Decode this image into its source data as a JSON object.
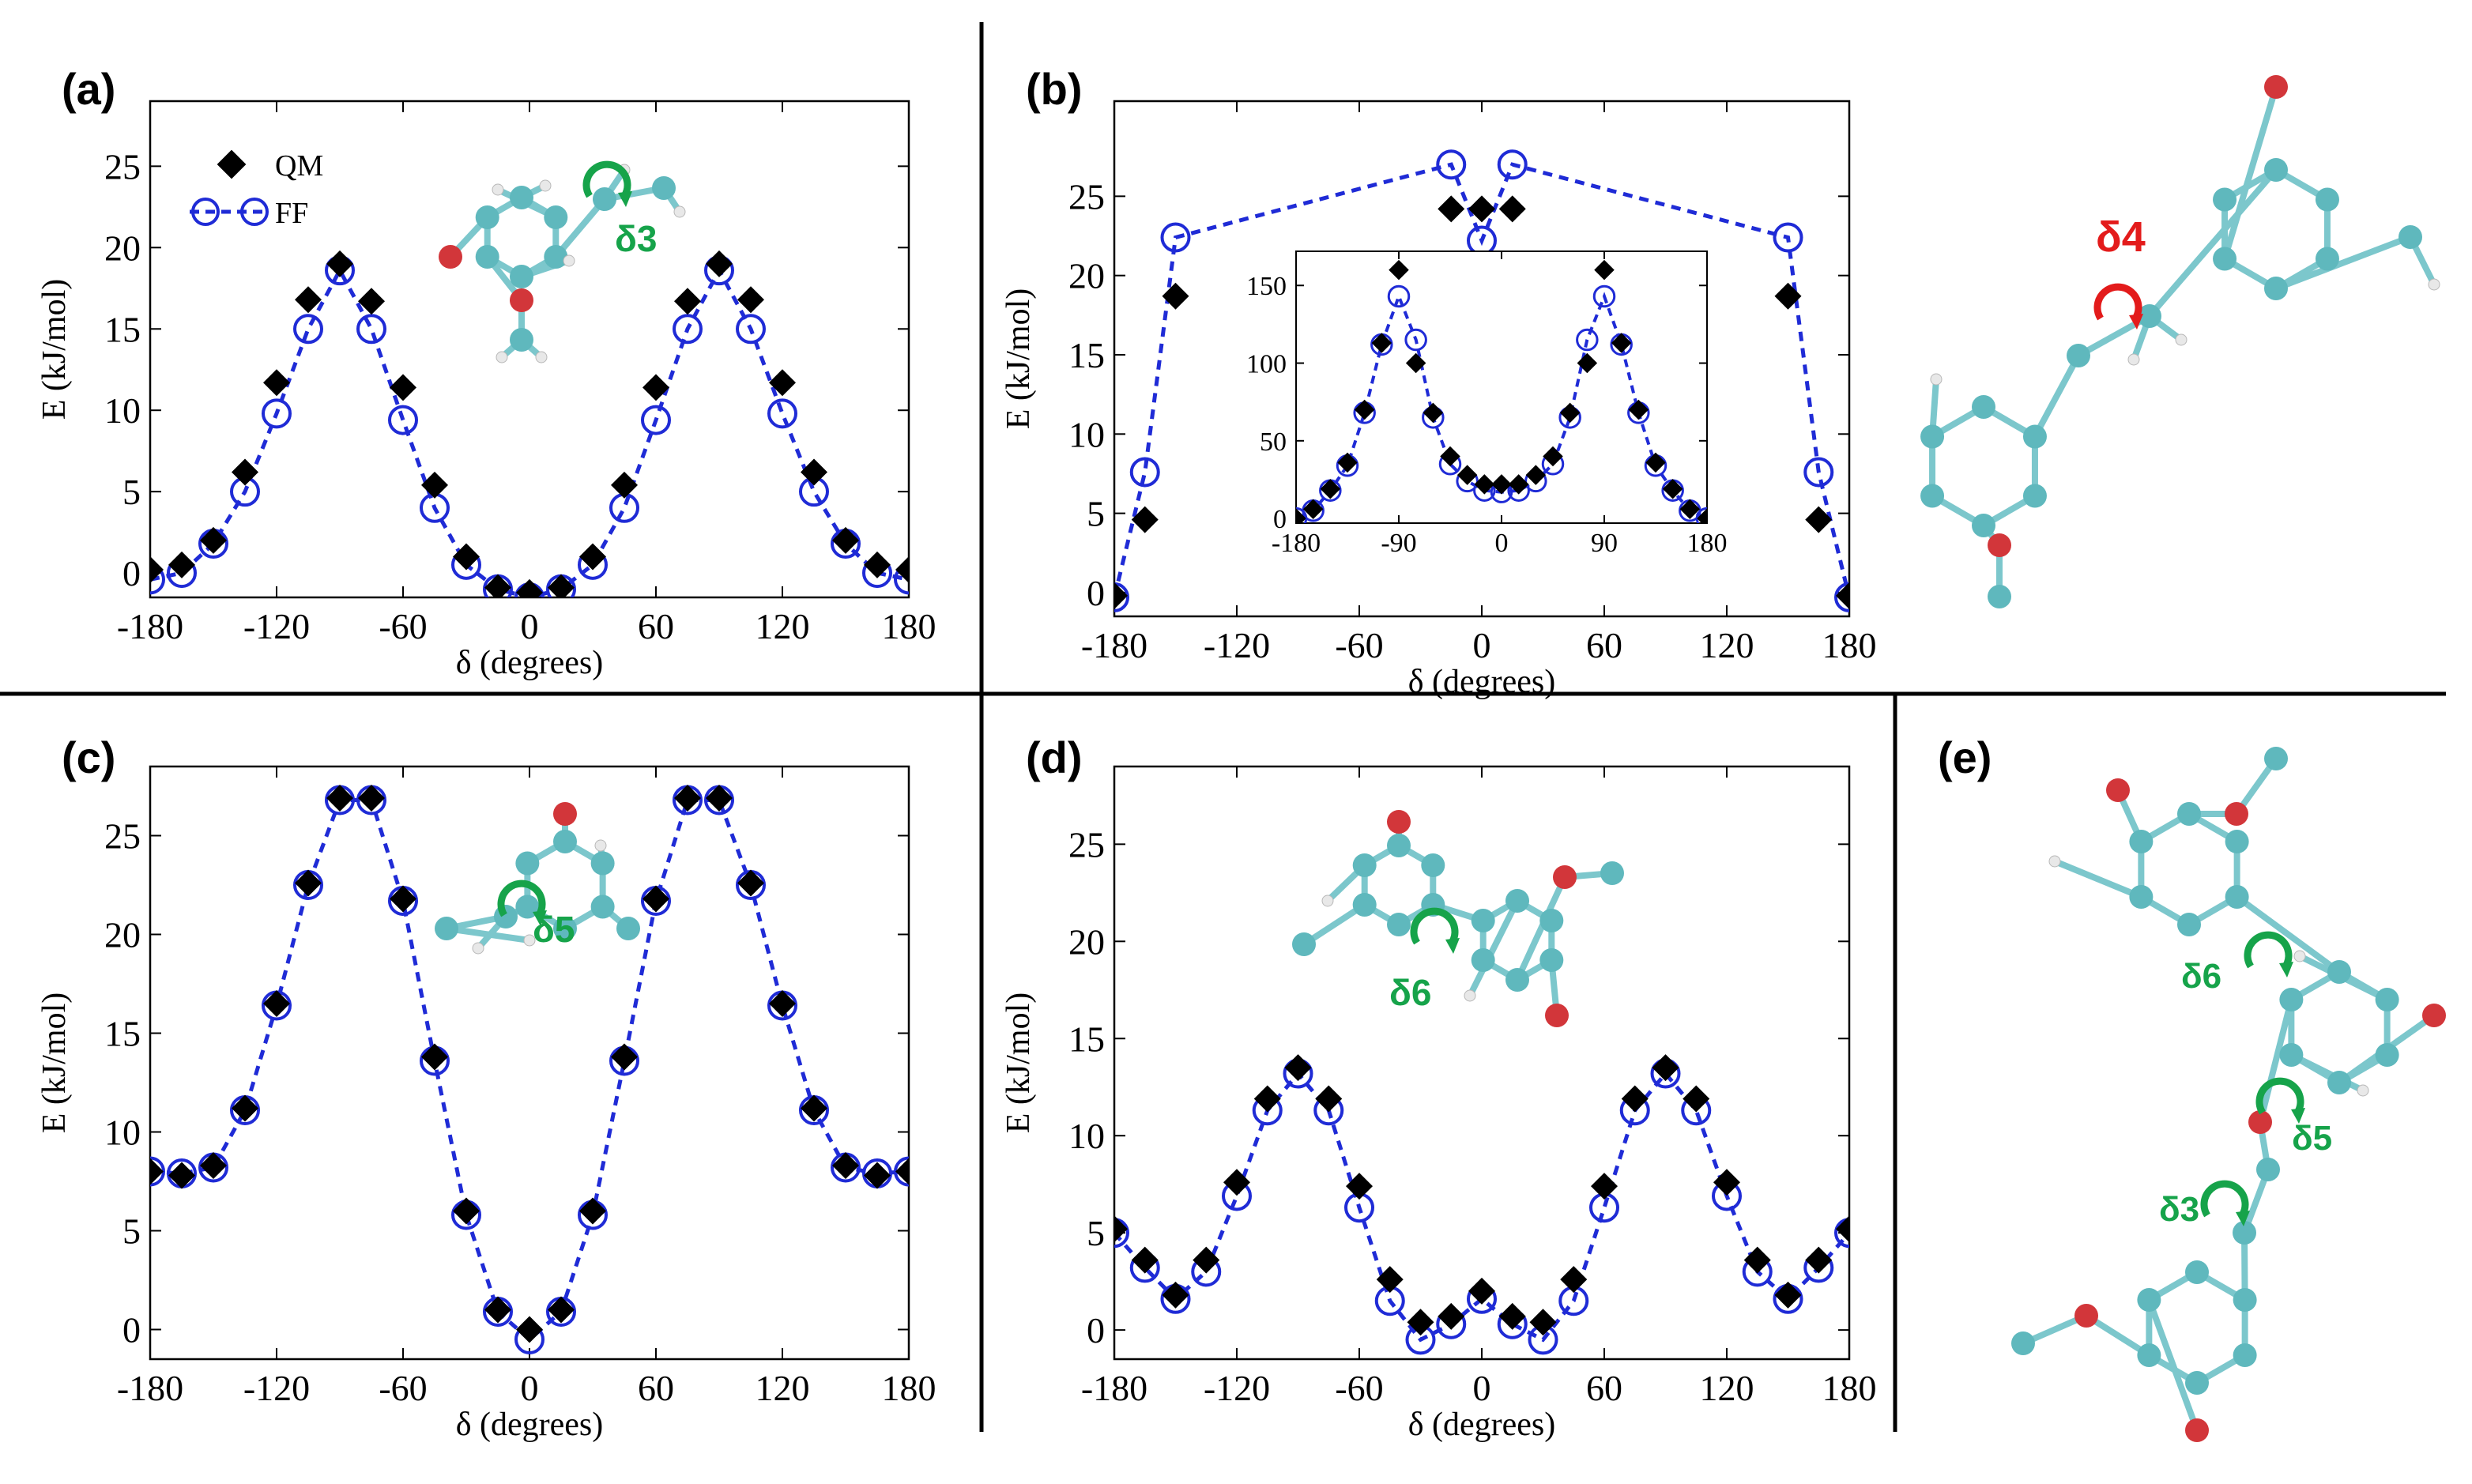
{
  "colors": {
    "qm": "#000000",
    "ff": "#1f2bd6",
    "carbon": "#5fb8bd",
    "oxygen": "#d2363a",
    "hydrogen": "#e8e8e8",
    "bond": "#7cc7cc",
    "green": "#16a34a",
    "red": "#e31b1b"
  },
  "figure": {
    "dividers": "panel separators",
    "legend": {
      "qm": "QM",
      "ff": "FF"
    },
    "molecule_e": {
      "name": "full molecule with dihedrals",
      "labels": [
        "δ6",
        "δ5",
        "δ3"
      ]
    },
    "molecule_b": {
      "label": "δ4"
    }
  },
  "chart_data": [
    {
      "id": "a",
      "panel_label": "(a)",
      "type": "scatter",
      "xlabel": "δ (degrees)",
      "ylabel": "E (kJ/mol)",
      "xlim": [
        -180,
        180
      ],
      "ylim": [
        -1.5,
        29
      ],
      "xticks": [
        -180,
        -120,
        -60,
        0,
        60,
        120,
        180
      ],
      "yticks": [
        0,
        5,
        10,
        15,
        20,
        25
      ],
      "angle_label": "δ3",
      "angle_color": "green",
      "legend": true,
      "series": [
        {
          "name": "QM",
          "marker": "diamond",
          "x": [
            -180,
            -165,
            -150,
            -135,
            -120,
            -105,
            -90,
            -75,
            -60,
            -45,
            -30,
            -15,
            0,
            15,
            30,
            45,
            60,
            75,
            90,
            105,
            120,
            135,
            150,
            165,
            180
          ],
          "y": [
            0.2,
            0.5,
            2,
            6.2,
            11.7,
            16.8,
            19,
            16.7,
            11.4,
            5.4,
            1,
            -0.9,
            -1.2,
            -0.9,
            1,
            5.4,
            11.4,
            16.7,
            19,
            16.8,
            11.7,
            6.2,
            2,
            0.5,
            0.2
          ]
        },
        {
          "name": "FF",
          "marker": "open-circle",
          "line": "dashed",
          "x": [
            -180,
            -165,
            -150,
            -135,
            -120,
            -105,
            -90,
            -75,
            -60,
            -45,
            -30,
            -15,
            0,
            15,
            30,
            45,
            60,
            75,
            90,
            105,
            120,
            135,
            150,
            165,
            180
          ],
          "y": [
            -0.4,
            0,
            1.8,
            5,
            9.8,
            15,
            18.6,
            15,
            9.4,
            4,
            0.5,
            -1,
            -1.5,
            -1,
            0.5,
            4,
            9.4,
            15,
            18.6,
            15,
            9.8,
            5,
            1.8,
            0,
            -0.4
          ]
        }
      ]
    },
    {
      "id": "b",
      "panel_label": "(b)",
      "type": "scatter",
      "xlabel": "δ (degrees)",
      "ylabel": "E (kJ/mol)",
      "xlim": [
        -180,
        180
      ],
      "ylim": [
        -1.5,
        31
      ],
      "xticks": [
        -180,
        -120,
        -60,
        0,
        60,
        120,
        180
      ],
      "yticks": [
        0,
        5,
        10,
        15,
        20,
        25
      ],
      "angle_label": "δ4",
      "angle_color": "red",
      "series": [
        {
          "name": "QM",
          "marker": "diamond",
          "x": [
            -180,
            -165,
            -150,
            -15,
            0,
            15,
            150,
            165,
            180
          ],
          "y": [
            -0.2,
            4.6,
            18.7,
            24.2,
            24.2,
            24.2,
            18.7,
            4.6,
            -0.2
          ]
        },
        {
          "name": "FF",
          "marker": "open-circle",
          "line": "dashed",
          "x": [
            -180,
            -165,
            -150,
            -15,
            0,
            15,
            150,
            165,
            180
          ],
          "y": [
            -0.3,
            7.6,
            22.4,
            27,
            22.2,
            27,
            22.4,
            7.6,
            -0.3
          ]
        }
      ],
      "inset": {
        "xlim": [
          -180,
          180
        ],
        "ylim": [
          -3,
          172
        ],
        "xticks": [
          -180,
          -90,
          0,
          90,
          180
        ],
        "yticks": [
          0,
          50,
          100,
          150
        ],
        "series": [
          {
            "name": "QM",
            "marker": "diamond",
            "x": [
              -180,
              -165,
              -150,
              -135,
              -120,
              -105,
              -90,
              -75,
              -60,
              -45,
              -30,
              -15,
              0,
              15,
              30,
              45,
              60,
              75,
              90,
              105,
              120,
              135,
              150,
              165,
              180
            ],
            "y": [
              0,
              6,
              19,
              36,
              70,
              113,
              160,
              100,
              68,
              40,
              28,
              22,
              22,
              22,
              28,
              40,
              68,
              100,
              160,
              113,
              70,
              36,
              19,
              6,
              0
            ]
          },
          {
            "name": "FF",
            "marker": "open-circle",
            "line": "dashed",
            "x": [
              -180,
              -165,
              -150,
              -135,
              -120,
              -105,
              -90,
              -75,
              -60,
              -45,
              -30,
              -15,
              0,
              15,
              30,
              45,
              60,
              75,
              90,
              105,
              120,
              135,
              150,
              165,
              180
            ],
            "y": [
              0,
              5,
              18,
              34,
              68,
              112,
              143,
              115,
              65,
              35,
              24,
              18,
              17,
              18,
              24,
              35,
              65,
              115,
              143,
              112,
              68,
              34,
              18,
              5,
              0
            ]
          }
        ]
      }
    },
    {
      "id": "c",
      "panel_label": "(c)",
      "type": "scatter",
      "xlabel": "δ (degrees)",
      "ylabel": "E (kJ/mol)",
      "xlim": [
        -180,
        180
      ],
      "ylim": [
        -1.5,
        28.5
      ],
      "xticks": [
        -180,
        -120,
        -60,
        0,
        60,
        120,
        180
      ],
      "yticks": [
        0,
        5,
        10,
        15,
        20,
        25
      ],
      "angle_label": "δ5",
      "angle_color": "green",
      "series": [
        {
          "name": "QM",
          "marker": "diamond",
          "x": [
            -180,
            -165,
            -150,
            -135,
            -120,
            -105,
            -90,
            -75,
            -60,
            -45,
            -30,
            -15,
            0,
            15,
            30,
            45,
            60,
            75,
            90,
            105,
            120,
            135,
            150,
            165,
            180
          ],
          "y": [
            8,
            7.8,
            8.3,
            11.2,
            16.5,
            22.6,
            26.9,
            26.9,
            21.8,
            13.8,
            6,
            1,
            0,
            1,
            6,
            13.8,
            21.8,
            26.9,
            26.9,
            22.6,
            16.5,
            11.2,
            8.3,
            7.8,
            8
          ]
        },
        {
          "name": "FF",
          "marker": "open-circle",
          "line": "dashed",
          "x": [
            -180,
            -165,
            -150,
            -135,
            -120,
            -105,
            -90,
            -75,
            -60,
            -45,
            -30,
            -15,
            0,
            15,
            30,
            45,
            60,
            75,
            90,
            105,
            120,
            135,
            150,
            165,
            180
          ],
          "y": [
            8,
            7.9,
            8.2,
            11.1,
            16.4,
            22.5,
            26.8,
            26.8,
            21.7,
            13.6,
            5.8,
            0.9,
            -0.5,
            0.9,
            5.8,
            13.6,
            21.7,
            26.8,
            26.8,
            22.5,
            16.4,
            11.1,
            8.2,
            7.9,
            8
          ]
        }
      ]
    },
    {
      "id": "d",
      "panel_label": "(d)",
      "type": "scatter",
      "xlabel": "δ (degrees)",
      "ylabel": "E (kJ/mol)",
      "xlim": [
        -180,
        180
      ],
      "ylim": [
        -1.5,
        29
      ],
      "xticks": [
        -180,
        -120,
        -60,
        0,
        60,
        120,
        180
      ],
      "yticks": [
        0,
        5,
        10,
        15,
        20,
        25
      ],
      "angle_label": "δ6",
      "angle_color": "green",
      "series": [
        {
          "name": "QM",
          "marker": "diamond",
          "x": [
            -180,
            -165,
            -150,
            -135,
            -120,
            -105,
            -90,
            -75,
            -60,
            -45,
            -30,
            -15,
            0,
            15,
            30,
            45,
            60,
            75,
            90,
            105,
            120,
            135,
            150,
            165,
            180
          ],
          "y": [
            5.2,
            3.6,
            1.8,
            3.6,
            7.6,
            11.9,
            13.5,
            11.9,
            7.4,
            2.6,
            0.4,
            0.7,
            2,
            0.7,
            0.4,
            2.6,
            7.4,
            11.9,
            13.5,
            11.9,
            7.6,
            3.6,
            1.8,
            3.6,
            5.2
          ]
        },
        {
          "name": "FF",
          "marker": "open-circle",
          "line": "dashed",
          "x": [
            -180,
            -165,
            -150,
            -135,
            -120,
            -105,
            -90,
            -75,
            -60,
            -45,
            -30,
            -15,
            0,
            15,
            30,
            45,
            60,
            75,
            90,
            105,
            120,
            135,
            150,
            165,
            180
          ],
          "y": [
            5,
            3.2,
            1.6,
            3,
            6.9,
            11.3,
            13.2,
            11.3,
            6.3,
            1.5,
            -0.5,
            0.3,
            1.6,
            0.3,
            -0.5,
            1.5,
            6.3,
            11.3,
            13.2,
            11.3,
            6.9,
            3,
            1.6,
            3.2,
            5
          ]
        }
      ]
    }
  ],
  "panel_e": {
    "panel_label": "(e)"
  }
}
